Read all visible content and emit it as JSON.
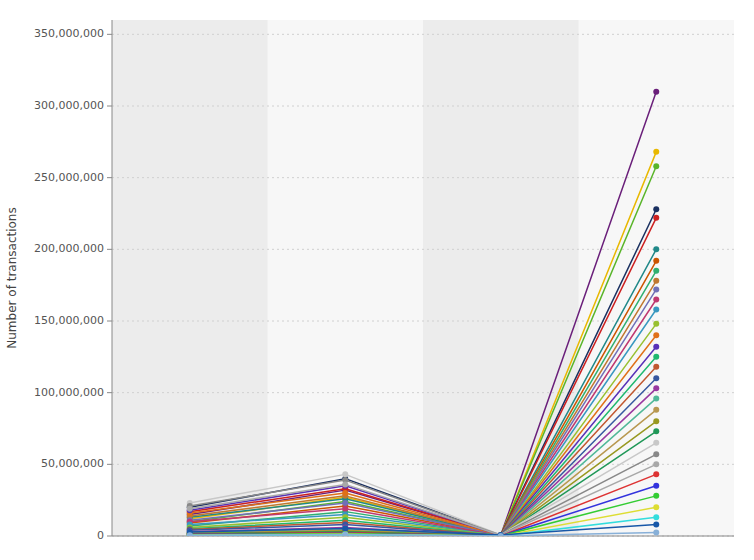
{
  "chart_data": {
    "type": "line",
    "ylabel": "Number of transactions",
    "categories": [
      null,
      null,
      null,
      null
    ],
    "ylim": [
      0,
      360000000
    ],
    "yticks": [
      0,
      {
        "value": 50000000,
        "label": "50,000,000"
      },
      {
        "value": 100000000,
        "label": "100,000,000"
      },
      {
        "value": 150000000,
        "label": "150,000,000"
      },
      {
        "value": 200000000,
        "label": "200,000,000"
      },
      {
        "value": 250000000,
        "label": "250,000,000"
      },
      {
        "value": 300000000,
        "label": "300,000,000"
      },
      {
        "value": 350000000,
        "label": "350,000,000"
      }
    ],
    "grid": true,
    "tick_labels": "y",
    "marker": "circle",
    "series": [
      {
        "color": "#6a1f7a",
        "values": [
          15000000,
          32000000,
          500000,
          310000000
        ]
      },
      {
        "color": "#e8b800",
        "values": [
          12000000,
          27000000,
          400000,
          268000000
        ]
      },
      {
        "color": "#5ab52a",
        "values": [
          10000000,
          24000000,
          300000,
          258000000
        ]
      },
      {
        "color": "#1a3060",
        "values": [
          20000000,
          40000000,
          600000,
          228000000
        ]
      },
      {
        "color": "#cc2020",
        "values": [
          17000000,
          33000000,
          450000,
          222000000
        ]
      },
      {
        "color": "#208888",
        "values": [
          13000000,
          26000000,
          350000,
          200000000
        ]
      },
      {
        "color": "#cc5500",
        "values": [
          9000000,
          21000000,
          280000,
          192000000
        ]
      },
      {
        "color": "#30b070",
        "values": [
          7000000,
          17000000,
          200000,
          185000000
        ]
      },
      {
        "color": "#c07830",
        "values": [
          14000000,
          28000000,
          380000,
          178000000
        ]
      },
      {
        "color": "#7070b8",
        "values": [
          11000000,
          23000000,
          320000,
          172000000
        ]
      },
      {
        "color": "#c03870",
        "values": [
          10000000,
          19000000,
          260000,
          165000000
        ]
      },
      {
        "color": "#3898c0",
        "values": [
          8000000,
          15000000,
          220000,
          158000000
        ]
      },
      {
        "color": "#98c030",
        "values": [
          6000000,
          13000000,
          180000,
          148000000
        ]
      },
      {
        "color": "#e07018",
        "values": [
          16000000,
          30000000,
          420000,
          140000000
        ]
      },
      {
        "color": "#5830b8",
        "values": [
          18000000,
          35000000,
          500000,
          132000000
        ]
      },
      {
        "color": "#20b870",
        "values": [
          5000000,
          11000000,
          150000,
          125000000
        ]
      },
      {
        "color": "#c05830",
        "values": [
          4500000,
          9500000,
          120000,
          118000000
        ]
      },
      {
        "color": "#3858a0",
        "values": [
          4000000,
          8000000,
          100000,
          110000000
        ]
      },
      {
        "color": "#9838a0",
        "values": [
          3000000,
          6000000,
          80000,
          103000000
        ]
      },
      {
        "color": "#50b898",
        "values": [
          2500000,
          5000000,
          60000,
          96000000
        ]
      },
      {
        "color": "#b89850",
        "values": [
          2000000,
          4000000,
          50000,
          88000000
        ]
      },
      {
        "color": "#989820",
        "values": [
          1800000,
          3500000,
          42000,
          80000000
        ]
      },
      {
        "color": "#209858",
        "values": [
          1500000,
          3000000,
          35000,
          73000000
        ]
      },
      {
        "color": "#c8c8c8",
        "values": [
          23000000,
          43000000,
          700000,
          65000000
        ]
      },
      {
        "color": "#888888",
        "values": [
          21000000,
          39000000,
          600000,
          57000000
        ]
      },
      {
        "color": "#a8a8a8",
        "values": [
          19000000,
          36000000,
          550000,
          50000000
        ]
      },
      {
        "color": "#dd3333",
        "values": [
          1200000,
          2500000,
          28000,
          43000000
        ]
      },
      {
        "color": "#3333dd",
        "values": [
          1000000,
          2000000,
          22000,
          35000000
        ]
      },
      {
        "color": "#33cc33",
        "values": [
          800000,
          1800000,
          18000,
          28000000
        ]
      },
      {
        "color": "#dddd33",
        "values": [
          600000,
          1200000,
          12000,
          20000000
        ]
      },
      {
        "color": "#33dddd",
        "values": [
          400000,
          800000,
          8000,
          13000000
        ]
      },
      {
        "color": "#1858a8",
        "values": [
          2800000,
          5200000,
          750000,
          8000000
        ]
      },
      {
        "color": "#88b0d8",
        "values": [
          500000,
          1000000,
          6000,
          2500000
        ]
      }
    ]
  }
}
